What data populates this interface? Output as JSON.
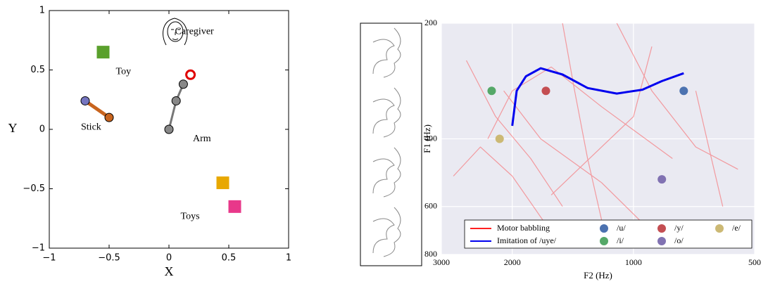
{
  "chart_data": [
    {
      "type": "scene",
      "xlabel": "X",
      "ylabel": "Y",
      "xlim": [
        -1,
        1
      ],
      "ylim": [
        -1,
        1
      ],
      "xticks": [
        {
          "value": -1,
          "label": "−1"
        },
        {
          "value": -0.5,
          "label": "−0.5"
        },
        0,
        0.5,
        1
      ],
      "yticks": [
        {
          "value": -1,
          "label": "−1"
        },
        {
          "value": -0.5,
          "label": "−0.5"
        },
        0,
        0.5,
        1
      ],
      "annotations": [
        {
          "text": "Caregiver",
          "x": 0.05,
          "y": 0.82
        }
      ],
      "series": [
        {
          "name": "Toy",
          "marker": "square",
          "color": "#5aa02c",
          "x": [
            -0.55
          ],
          "values": [
            0.65
          ]
        },
        {
          "name": "Stick",
          "marker": "segment",
          "color": "#c8641e",
          "point_colors": [
            "#7575c0",
            "#c8641e"
          ],
          "x": [
            -0.7,
            -0.5
          ],
          "values": [
            0.24,
            0.1
          ]
        },
        {
          "name": "Arm",
          "marker": "segment",
          "color": "#777777",
          "point_colors": [
            "#888888",
            "#888888",
            "#888888"
          ],
          "end_color": "#e00000",
          "x": [
            0,
            0.06,
            0.12,
            0.18
          ],
          "values": [
            0,
            0.24,
            0.38,
            0.46
          ]
        },
        {
          "name": "Toys",
          "marker": "square",
          "color": [
            "#e8a800",
            "#e8388a"
          ],
          "x": [
            0.45,
            0.55
          ],
          "values": [
            -0.45,
            -0.65
          ]
        }
      ]
    },
    {
      "type": "line",
      "xlabel": "F2 (Hz)",
      "ylabel": "F1 (Hz)",
      "xlim": [
        3000,
        500
      ],
      "ylim": [
        200,
        800
      ],
      "log_x": true,
      "log_y": true,
      "xticks": [
        3000,
        2000,
        1000,
        500
      ],
      "yticks": [
        200,
        400,
        600,
        800
      ],
      "grid": true,
      "series": [
        {
          "name": "Motor babbling",
          "kind": "line",
          "color": "#ff2020",
          "x": [
            2600,
            2200,
            1800,
            1500,
            null,
            2100,
            1700,
            1200,
            900,
            null,
            1500,
            1400,
            1300,
            1200,
            null,
            900,
            1000,
            1200,
            1600,
            null,
            2300,
            2000,
            1600,
            1200,
            800,
            null,
            700,
            650,
            600,
            null,
            2800,
            2400,
            2000,
            1600,
            null,
            1100,
            900,
            700,
            550
          ],
          "values": [
            250,
            350,
            450,
            600,
            null,
            300,
            400,
            520,
            700,
            null,
            200,
            300,
            450,
            650,
            null,
            230,
            350,
            420,
            560,
            null,
            400,
            300,
            260,
            330,
            450,
            null,
            300,
            420,
            600,
            null,
            500,
            420,
            500,
            700,
            null,
            200,
            300,
            420,
            480
          ]
        },
        {
          "name": "Imitation of /uye/",
          "kind": "line",
          "color": "#0000ee",
          "x": [
            2000,
            1950,
            1850,
            1700,
            1500,
            1300,
            1100,
            950,
            850,
            750
          ],
          "values": [
            370,
            300,
            275,
            262,
            272,
            295,
            305,
            298,
            283,
            270
          ]
        },
        {
          "name": "/u/",
          "kind": "point",
          "color": "#4c72b0",
          "x": [
            750
          ],
          "values": [
            300
          ]
        },
        {
          "name": "/y/",
          "kind": "point",
          "color": "#c44e52",
          "x": [
            1650
          ],
          "values": [
            300
          ]
        },
        {
          "name": "/e/",
          "kind": "point",
          "color": "#ccb974",
          "x": [
            2150
          ],
          "values": [
            400
          ]
        },
        {
          "name": "/i/",
          "kind": "point",
          "color": "#55a868",
          "x": [
            2250
          ],
          "values": [
            300
          ]
        },
        {
          "name": "/o/",
          "kind": "point",
          "color": "#8172b2",
          "x": [
            850
          ],
          "values": [
            510
          ]
        }
      ]
    }
  ]
}
